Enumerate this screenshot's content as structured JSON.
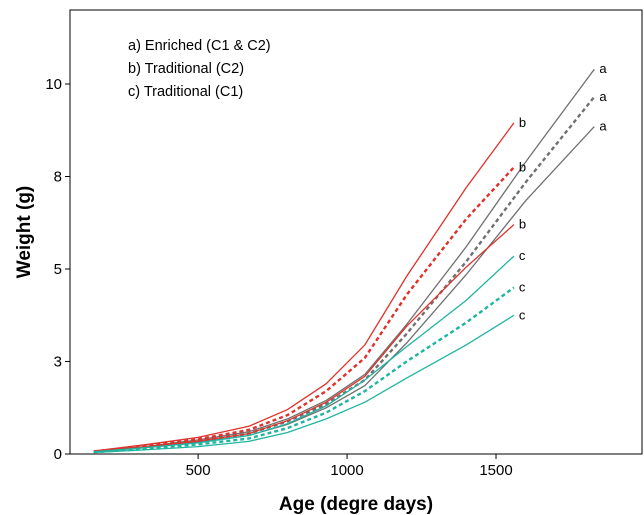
{
  "chart_data": {
    "type": "line",
    "xlabel": "Age (degre days)",
    "ylabel": "Weight (g)",
    "xlim": [
      70,
      1990
    ],
    "ylim": [
      0,
      12
    ],
    "xticks": [
      500,
      1000,
      1500
    ],
    "yticks": [
      0,
      2.5,
      5,
      7.5,
      10
    ],
    "ytick_labels": [
      "0",
      "3",
      "5",
      "8",
      "10"
    ],
    "grid": false,
    "legend_lines": [
      "a) Enriched (C1 & C2)",
      "b) Traditional (C2)",
      "c) Traditional (C1)"
    ],
    "series": [
      {
        "group": "a",
        "color": "#707070",
        "dash": "solid",
        "end_label": "a",
        "x": [
          150,
          320,
          500,
          670,
          800,
          930,
          1060,
          1200,
          1400,
          1600,
          1830
        ],
        "y": [
          0.08,
          0.2,
          0.38,
          0.6,
          0.95,
          1.45,
          2.15,
          3.5,
          5.6,
          7.9,
          10.4
        ]
      },
      {
        "group": "a",
        "color": "#707070",
        "dash": "dotted",
        "end_label": "a",
        "x": [
          150,
          320,
          500,
          670,
          800,
          930,
          1060,
          1200,
          1400,
          1600,
          1830
        ],
        "y": [
          0.07,
          0.19,
          0.35,
          0.55,
          0.88,
          1.35,
          2.0,
          3.25,
          5.2,
          7.35,
          9.65
        ]
      },
      {
        "group": "a",
        "color": "#707070",
        "dash": "solid",
        "end_label": "a",
        "x": [
          150,
          320,
          500,
          670,
          800,
          930,
          1060,
          1200,
          1400,
          1600,
          1830
        ],
        "y": [
          0.06,
          0.17,
          0.32,
          0.5,
          0.8,
          1.25,
          1.85,
          3.0,
          4.85,
          6.85,
          8.85
        ]
      },
      {
        "group": "b",
        "color": "#e0312b",
        "dash": "solid",
        "end_label": "b",
        "x": [
          150,
          320,
          500,
          670,
          800,
          930,
          1060,
          1200,
          1400,
          1560
        ],
        "y": [
          0.08,
          0.25,
          0.45,
          0.75,
          1.2,
          1.9,
          2.95,
          4.8,
          7.2,
          8.95
        ]
      },
      {
        "group": "b",
        "color": "#e0312b",
        "dash": "dotted",
        "end_label": "b",
        "x": [
          150,
          320,
          500,
          670,
          800,
          930,
          1060,
          1200,
          1400,
          1560
        ],
        "y": [
          0.07,
          0.22,
          0.4,
          0.65,
          1.05,
          1.7,
          2.6,
          4.3,
          6.35,
          7.75
        ]
      },
      {
        "group": "b",
        "color": "#e0312b",
        "dash": "solid",
        "end_label": "b",
        "x": [
          150,
          320,
          500,
          670,
          800,
          930,
          1060,
          1200,
          1400,
          1560
        ],
        "y": [
          0.06,
          0.19,
          0.35,
          0.55,
          0.9,
          1.4,
          2.1,
          3.45,
          5.05,
          6.2
        ]
      },
      {
        "group": "c",
        "color": "#1fb5a0",
        "dash": "solid",
        "end_label": "c",
        "x": [
          150,
          320,
          500,
          670,
          800,
          930,
          1060,
          1200,
          1400,
          1560
        ],
        "y": [
          0.06,
          0.17,
          0.3,
          0.5,
          0.82,
          1.3,
          2.0,
          2.9,
          4.15,
          5.35
        ]
      },
      {
        "group": "c",
        "color": "#1fb5a0",
        "dash": "dotted",
        "end_label": "c",
        "x": [
          150,
          320,
          500,
          670,
          800,
          930,
          1060,
          1200,
          1400,
          1560
        ],
        "y": [
          0.05,
          0.14,
          0.26,
          0.42,
          0.7,
          1.12,
          1.7,
          2.5,
          3.55,
          4.5
        ]
      },
      {
        "group": "c",
        "color": "#1fb5a0",
        "dash": "solid",
        "end_label": "c",
        "x": [
          150,
          320,
          500,
          670,
          800,
          930,
          1060,
          1200,
          1400,
          1560
        ],
        "y": [
          0.04,
          0.11,
          0.2,
          0.34,
          0.58,
          0.95,
          1.4,
          2.05,
          2.95,
          3.75
        ]
      }
    ]
  }
}
